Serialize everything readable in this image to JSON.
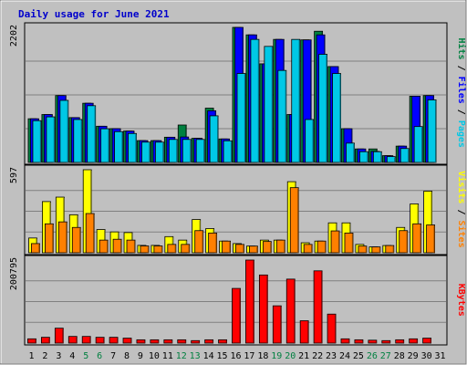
{
  "chart_data": {
    "type": "bar",
    "title": "Daily usage for June 2021",
    "categories": [
      "1",
      "2",
      "3",
      "4",
      "5",
      "6",
      "7",
      "8",
      "9",
      "10",
      "11",
      "12",
      "13",
      "14",
      "15",
      "16",
      "17",
      "18",
      "19",
      "20",
      "21",
      "22",
      "23",
      "24",
      "25",
      "26",
      "27",
      "28",
      "29",
      "30",
      "31"
    ],
    "weekend_days": [
      "5",
      "6",
      "12",
      "13",
      "19",
      "20",
      "26",
      "27"
    ],
    "grid": true,
    "legend": "right",
    "panels": [
      {
        "name": "hits-files-pages",
        "ylabel_parts": [
          {
            "text": "Pages",
            "color": "#00c8e6"
          },
          {
            "text": " / ",
            "color": "#000000"
          },
          {
            "text": "Files",
            "color": "#0000ff"
          },
          {
            "text": " / ",
            "color": "#000000"
          },
          {
            "text": "Hits",
            "color": "#008040"
          }
        ],
        "ymax_label": "2202",
        "ylim": [
          0,
          2202
        ],
        "series": [
          {
            "name": "Hits",
            "color": "#008040",
            "values": [
              712,
              781,
              1090,
              731,
              965,
              590,
              551,
              512,
              356,
              356,
              411,
              610,
              393,
              885,
              383,
              2202,
              2080,
              1608,
              2006,
              781,
              1998,
              2139,
              1563,
              550,
              220,
              220,
              110,
              266,
              1080,
              1090,
              0
            ]
          },
          {
            "name": "Files",
            "color": "#0000ff",
            "values": [
              712,
              781,
              1090,
              731,
              965,
              590,
              551,
              512,
              356,
              356,
              411,
              415,
              393,
              843,
              383,
              2202,
              2080,
              1608,
              2006,
              781,
              1998,
              2080,
              1563,
              550,
              220,
              180,
              110,
              266,
              1080,
              1090,
              0
            ]
          },
          {
            "name": "Pages",
            "color": "#00c8e6",
            "values": [
              681,
              743,
              1012,
              700,
              925,
              549,
              502,
              472,
              331,
              331,
              375,
              375,
              375,
              760,
              353,
              1450,
              2006,
              1892,
              1500,
              2006,
              700,
              1763,
              1450,
              315,
              175,
              175,
              95,
              227,
              585,
              1020,
              0
            ]
          }
        ]
      },
      {
        "name": "visits-sites",
        "ylabel_parts": [
          {
            "text": "Sites",
            "color": "#ff8000"
          },
          {
            "text": " / ",
            "color": "#000000"
          },
          {
            "text": "Visits",
            "color": "#ffff00"
          }
        ],
        "ymax_label": "597",
        "ylim": [
          0,
          597
        ],
        "series": [
          {
            "name": "Visits",
            "color": "#ffff00",
            "values": [
              106,
              368,
              400,
              273,
              597,
              167,
              150,
              145,
              53,
              53,
              116,
              91,
              239,
              174,
              84,
              66,
              48,
              91,
              91,
              511,
              72,
              84,
              215,
              215,
              60,
              42,
              52,
              182,
              351,
              443,
              0
            ]
          },
          {
            "name": "Sites",
            "color": "#ff8000",
            "values": [
              66,
              208,
              222,
              182,
              282,
              91,
              97,
              91,
              49,
              49,
              60,
              60,
              159,
              142,
              84,
              60,
              48,
              81,
              91,
              468,
              60,
              84,
              157,
              142,
              48,
              42,
              52,
              159,
              208,
              200,
              0
            ]
          }
        ]
      },
      {
        "name": "kbytes",
        "ylabel_parts": [
          {
            "text": "KBytes",
            "color": "#ff0000"
          }
        ],
        "ymax_label": "200795",
        "ylim": [
          0,
          200795
        ],
        "series": [
          {
            "name": "KBytes",
            "color": "#ff0000",
            "values": [
              10326,
              14022,
              36060,
              16124,
              16124,
              14022,
              14022,
              12020,
              8014,
              8014,
              8014,
              8014,
              6010,
              8014,
              8014,
              132218,
              200795,
              164736,
              90150,
              154719,
              54090,
              174744,
              70110,
              10326,
              8014,
              7019,
              6010,
              8014,
              10326,
              12020,
              0
            ]
          }
        ]
      }
    ]
  }
}
